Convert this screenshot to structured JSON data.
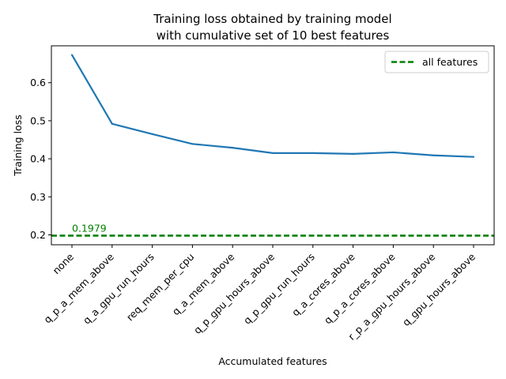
{
  "chart_data": {
    "type": "line",
    "title_lines": [
      "Training loss obtained by training model",
      "with cumulative set of 10 best features"
    ],
    "xlabel": "Accumulated features",
    "ylabel": "Training loss",
    "categories": [
      "none",
      "q_p_a_mem_above",
      "q_a_gpu_run_hours",
      "req_mem_per_cpu",
      "q_a_mem_above",
      "q_p_gpu_hours_above",
      "q_p_gpu_run_hours",
      "q_a_cores_above",
      "q_p_a_cores_above",
      "r_p_a_gpu_hours_above",
      "q_gpu_hours_above"
    ],
    "series": [
      {
        "values": [
          0.673,
          0.492,
          0.465,
          0.439,
          0.429,
          0.415,
          0.415,
          0.413,
          0.417,
          0.409,
          0.405
        ],
        "color": "#1f77b4"
      }
    ],
    "reference_line": {
      "name": "all features",
      "value": 0.1979,
      "label": "0.1979",
      "color": "#008000",
      "style": "dashed"
    },
    "yticks": [
      "0.2",
      "0.3",
      "0.4",
      "0.5",
      "0.6"
    ],
    "ylim": [
      0.174,
      0.697
    ],
    "grid": false,
    "legend_position": "upper-right"
  }
}
